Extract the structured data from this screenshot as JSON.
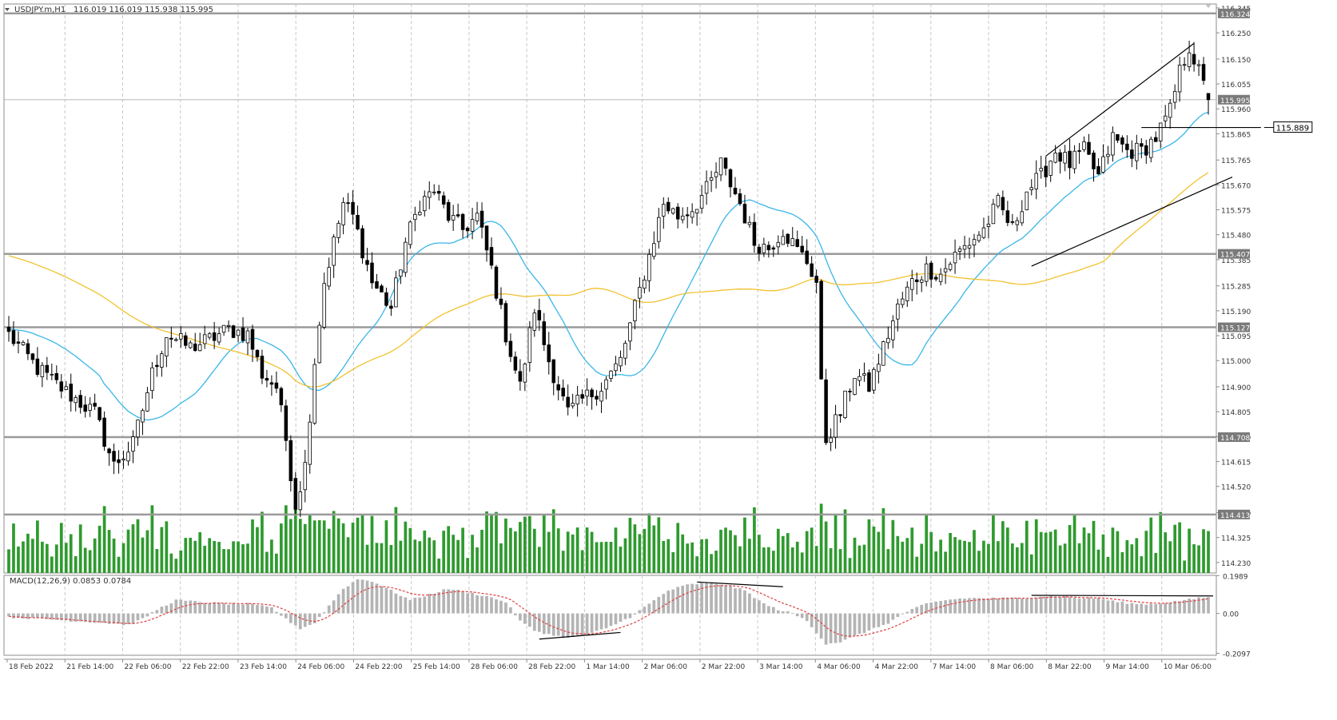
{
  "header": {
    "symbol_label": "USDJPY.m,H1",
    "ohlc_text": "116.019 116.019 115.938 115.995"
  },
  "colors": {
    "background": "#ffffff",
    "grid": "#c8c8c8",
    "axis": "#8c8c8c",
    "text": "#333333",
    "candle": "#000000",
    "ma_fast": "#39b6e8",
    "ma_slow": "#f2c230",
    "volume": "#2e9a2e",
    "level_line": "#9a9a9a",
    "macd_hist": "#b4b4b4",
    "macd_signal": "#e04040",
    "price_tag_bg": "#7a7a7a",
    "price_tag_text": "#ffffff"
  },
  "chart_data": [
    {
      "type": "candlestick",
      "panel": "main",
      "ylim": [
        114.19,
        116.36
      ],
      "grid": true,
      "y_ticks": [
        "116.345",
        "116.250",
        "116.150",
        "116.055",
        "115.960",
        "115.865",
        "115.765",
        "115.670",
        "115.575",
        "115.480",
        "115.385",
        "115.285",
        "115.190",
        "115.095",
        "115.000",
        "114.900",
        "114.805",
        "114.710",
        "114.615",
        "114.520",
        "114.420",
        "114.325",
        "114.230"
      ],
      "x_labels": [
        "18 Feb 2022",
        "21 Feb 14:00",
        "22 Feb 06:00",
        "22 Feb 22:00",
        "23 Feb 14:00",
        "24 Feb 06:00",
        "24 Feb 22:00",
        "25 Feb 14:00",
        "28 Feb 06:00",
        "28 Feb 22:00",
        "1 Mar 14:00",
        "2 Mar 06:00",
        "2 Mar 22:00",
        "3 Mar 14:00",
        "4 Mar 06:00",
        "4 Mar 22:00",
        "7 Mar 14:00",
        "8 Mar 06:00",
        "8 Mar 22:00",
        "9 Mar 14:00",
        "10 Mar 06:00"
      ],
      "close_path": [
        [
          0,
          115.1
        ],
        [
          6,
          114.97
        ],
        [
          12,
          114.88
        ],
        [
          18,
          114.8
        ],
        [
          22,
          114.6
        ],
        [
          26,
          114.68
        ],
        [
          30,
          114.95
        ],
        [
          33,
          115.1
        ],
        [
          38,
          115.05
        ],
        [
          42,
          115.08
        ],
        [
          46,
          115.12
        ],
        [
          50,
          115.1
        ],
        [
          53,
          114.95
        ],
        [
          56,
          114.9
        ],
        [
          58,
          114.7
        ],
        [
          60,
          114.45
        ],
        [
          62,
          114.6
        ],
        [
          64,
          115.0
        ],
        [
          66,
          115.3
        ],
        [
          70,
          115.6
        ],
        [
          72,
          115.55
        ],
        [
          76,
          115.3
        ],
        [
          80,
          115.2
        ],
        [
          83,
          115.45
        ],
        [
          86,
          115.6
        ],
        [
          89,
          115.65
        ],
        [
          92,
          115.55
        ],
        [
          95,
          115.5
        ],
        [
          98,
          115.55
        ],
        [
          101,
          115.35
        ],
        [
          104,
          115.1
        ],
        [
          107,
          114.9
        ],
        [
          110,
          115.2
        ],
        [
          113,
          115.0
        ],
        [
          117,
          114.8
        ],
        [
          120,
          114.85
        ],
        [
          124,
          114.9
        ],
        [
          128,
          115.0
        ],
        [
          131,
          115.2
        ],
        [
          134,
          115.4
        ],
        [
          137,
          115.6
        ],
        [
          140,
          115.55
        ],
        [
          143,
          115.58
        ],
        [
          146,
          115.65
        ],
        [
          149,
          115.75
        ],
        [
          153,
          115.6
        ],
        [
          156,
          115.45
        ],
        [
          159,
          115.43
        ],
        [
          162,
          115.5
        ],
        [
          165,
          115.42
        ],
        [
          167,
          115.38
        ],
        [
          169,
          115.3
        ],
        [
          170,
          114.9
        ],
        [
          171,
          114.7
        ],
        [
          174,
          114.8
        ],
        [
          177,
          114.95
        ],
        [
          180,
          114.9
        ],
        [
          183,
          115.05
        ],
        [
          186,
          115.2
        ],
        [
          189,
          115.3
        ],
        [
          192,
          115.35
        ],
        [
          195,
          115.33
        ],
        [
          198,
          115.4
        ],
        [
          201,
          115.45
        ],
        [
          204,
          115.5
        ],
        [
          207,
          115.6
        ],
        [
          210,
          115.5
        ],
        [
          213,
          115.65
        ],
        [
          216,
          115.7
        ],
        [
          219,
          115.8
        ],
        [
          222,
          115.75
        ],
        [
          225,
          115.8
        ],
        [
          228,
          115.7
        ],
        [
          231,
          115.85
        ],
        [
          234,
          115.8
        ],
        [
          237,
          115.8
        ],
        [
          240,
          115.85
        ],
        [
          243,
          115.95
        ],
        [
          245,
          116.1
        ],
        [
          247,
          116.2
        ],
        [
          249,
          116.1
        ],
        [
          251,
          115.995
        ]
      ],
      "last_bar_ohlc": {
        "open": 116.019,
        "high": 116.019,
        "low": 115.938,
        "close": 115.995
      },
      "horizontal_levels": [
        "116.324",
        "115.407",
        "115.127",
        "114.708",
        "114.413"
      ],
      "current_price_label": "115.995",
      "marked_level_label": "115.889",
      "indicators": [
        {
          "type": "moving-average",
          "role": "fast"
        },
        {
          "type": "moving-average",
          "role": "slow"
        },
        {
          "type": "volume-histogram"
        }
      ],
      "annotations": [
        {
          "type": "channel-upper-line",
          "from": [
            217,
            115.78
          ],
          "to": [
            248,
            116.21
          ]
        },
        {
          "type": "channel-lower-line",
          "from": [
            214,
            115.36
          ],
          "to": [
            256,
            115.7
          ]
        },
        {
          "type": "horizontal-segment",
          "from": [
            237,
            115.889
          ],
          "to": [
            262,
            115.889
          ]
        },
        {
          "type": "marker-triangle",
          "at": [
            251,
            116.36
          ]
        }
      ]
    },
    {
      "type": "bar",
      "panel": "macd",
      "title": "MACD(12,26,9) 0.0853 0.0784",
      "ylim": [
        -0.22,
        0.2
      ],
      "y_ticks": [
        "0.1989",
        "0.00",
        "-0.2097"
      ],
      "hist_path": [
        [
          0,
          -0.02
        ],
        [
          8,
          -0.03
        ],
        [
          14,
          -0.04
        ],
        [
          20,
          -0.05
        ],
        [
          25,
          -0.06
        ],
        [
          28,
          -0.03
        ],
        [
          31,
          0.02
        ],
        [
          35,
          0.07
        ],
        [
          40,
          0.06
        ],
        [
          46,
          0.05
        ],
        [
          50,
          0.05
        ],
        [
          55,
          0.03
        ],
        [
          58,
          -0.03
        ],
        [
          61,
          -0.08
        ],
        [
          64,
          -0.05
        ],
        [
          67,
          0.04
        ],
        [
          70,
          0.13
        ],
        [
          73,
          0.18
        ],
        [
          76,
          0.17
        ],
        [
          80,
          0.12
        ],
        [
          84,
          0.07
        ],
        [
          88,
          0.1
        ],
        [
          92,
          0.13
        ],
        [
          96,
          0.11
        ],
        [
          100,
          0.09
        ],
        [
          104,
          0.06
        ],
        [
          107,
          -0.04
        ],
        [
          110,
          -0.09
        ],
        [
          113,
          -0.11
        ],
        [
          117,
          -0.13
        ],
        [
          121,
          -0.11
        ],
        [
          125,
          -0.08
        ],
        [
          130,
          -0.02
        ],
        [
          134,
          0.05
        ],
        [
          138,
          0.12
        ],
        [
          142,
          0.15
        ],
        [
          146,
          0.16
        ],
        [
          150,
          0.15
        ],
        [
          154,
          0.12
        ],
        [
          158,
          0.05
        ],
        [
          161,
          0.02
        ],
        [
          164,
          0.0
        ],
        [
          167,
          -0.04
        ],
        [
          169,
          -0.1
        ],
        [
          171,
          -0.16
        ],
        [
          174,
          -0.15
        ],
        [
          177,
          -0.12
        ],
        [
          180,
          -0.09
        ],
        [
          184,
          -0.05
        ],
        [
          188,
          0.01
        ],
        [
          192,
          0.05
        ],
        [
          196,
          0.07
        ],
        [
          200,
          0.08
        ],
        [
          204,
          0.08
        ],
        [
          208,
          0.08
        ],
        [
          212,
          0.08
        ],
        [
          216,
          0.09
        ],
        [
          220,
          0.09
        ],
        [
          224,
          0.08
        ],
        [
          228,
          0.08
        ],
        [
          232,
          0.06
        ],
        [
          236,
          0.05
        ],
        [
          240,
          0.05
        ],
        [
          243,
          0.06
        ],
        [
          246,
          0.07
        ],
        [
          249,
          0.08
        ],
        [
          251,
          0.0853
        ]
      ],
      "signal_last": 0.0784,
      "annotations": [
        {
          "type": "divergence-line",
          "from": [
            111,
            -0.135
          ],
          "to": [
            128,
            -0.1
          ]
        },
        {
          "type": "divergence-line",
          "from": [
            144,
            0.165
          ],
          "to": [
            162,
            0.14
          ]
        },
        {
          "type": "divergence-line",
          "from": [
            214,
            0.095
          ],
          "to": [
            252,
            0.092
          ]
        }
      ]
    }
  ]
}
